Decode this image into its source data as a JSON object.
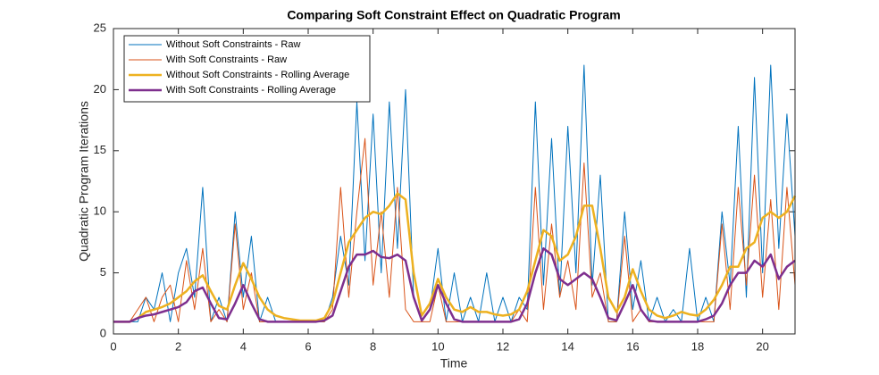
{
  "chart_data": {
    "type": "line",
    "title": "Comparing Soft Constraint Effect on Quadratic Program",
    "x_label": "Time",
    "y_label": "Quadratic Program Iterations",
    "x": [
      0,
      0.25,
      0.5,
      0.75,
      1,
      1.25,
      1.5,
      1.75,
      2,
      2.25,
      2.5,
      2.75,
      3,
      3.25,
      3.5,
      3.75,
      4,
      4.25,
      4.5,
      4.75,
      5,
      5.25,
      5.5,
      5.75,
      6,
      6.25,
      6.5,
      6.75,
      7,
      7.25,
      7.5,
      7.75,
      8,
      8.25,
      8.5,
      8.75,
      9,
      9.25,
      9.5,
      9.75,
      10,
      10.25,
      10.5,
      10.75,
      11,
      11.25,
      11.5,
      11.75,
      12,
      12.25,
      12.5,
      12.75,
      13,
      13.25,
      13.5,
      13.75,
      14,
      14.25,
      14.5,
      14.75,
      15,
      15.25,
      15.5,
      15.75,
      16,
      16.25,
      16.5,
      16.75,
      17,
      17.25,
      17.5,
      17.75,
      18,
      18.25,
      18.5,
      18.75,
      19,
      19.25,
      19.5,
      19.75,
      20,
      20.25,
      20.5,
      20.75,
      21
    ],
    "series": [
      {
        "name": "Without Soft Constraints - Raw",
        "color": "#0072BD",
        "width": 1,
        "values": [
          1,
          1,
          1,
          1,
          3,
          2,
          5,
          1,
          5,
          7,
          3,
          12,
          1,
          3,
          1,
          10,
          3,
          8,
          1,
          3,
          1,
          1,
          1,
          1,
          1,
          1,
          1,
          3,
          8,
          4,
          19,
          6,
          18,
          5,
          19,
          7,
          20,
          3,
          1,
          2,
          7,
          1,
          5,
          1,
          3,
          1,
          5,
          1,
          3,
          1,
          3,
          2,
          19,
          4,
          16,
          3,
          17,
          5,
          22,
          4,
          13,
          1,
          1,
          10,
          2,
          6,
          1,
          3,
          1,
          2,
          1,
          7,
          1,
          3,
          1,
          10,
          4,
          17,
          3,
          21,
          5,
          22,
          7,
          18,
          8
        ]
      },
      {
        "name": "With Soft Constraints - Raw",
        "color": "#D95319",
        "width": 1,
        "values": [
          1,
          1,
          1,
          2,
          3,
          1,
          3,
          4,
          1,
          6,
          2,
          7,
          1,
          2,
          1,
          9,
          2,
          5,
          1,
          1,
          1,
          1,
          1,
          1,
          1,
          1,
          1,
          2,
          12,
          3,
          10,
          16,
          4,
          10,
          3,
          12,
          2,
          1,
          1,
          1,
          4,
          1,
          1,
          1,
          1,
          1,
          1,
          1,
          1,
          1,
          2,
          1,
          12,
          2,
          9,
          3,
          6,
          2,
          14,
          3,
          5,
          1,
          1,
          8,
          1,
          2,
          1,
          1,
          1,
          1,
          1,
          1,
          1,
          1,
          1,
          9,
          2,
          12,
          4,
          13,
          3,
          11,
          2,
          12,
          4
        ]
      },
      {
        "name": "Without Soft Constraints - Rolling Average",
        "color": "#EDB120",
        "width": 2.5,
        "values": [
          1,
          1,
          1,
          1.3,
          1.8,
          2,
          2.2,
          2.5,
          3,
          3.5,
          4.3,
          4.8,
          3.5,
          2.3,
          2,
          4,
          5.8,
          4.5,
          3,
          2,
          1.5,
          1.3,
          1.2,
          1.1,
          1.1,
          1.1,
          1.3,
          2.5,
          5,
          7.5,
          8.5,
          9.5,
          10,
          9.8,
          10.5,
          11.5,
          11,
          5,
          1.5,
          2.5,
          4.5,
          3,
          2,
          1.8,
          2.2,
          1.8,
          1.8,
          1.6,
          1.5,
          1.6,
          2,
          3.5,
          6,
          8.5,
          8,
          6,
          6.5,
          8,
          10.5,
          10.5,
          7,
          3,
          1.8,
          3,
          5.3,
          3.5,
          2,
          1.5,
          1.3,
          1.5,
          1.8,
          1.6,
          1.5,
          2,
          2.8,
          4,
          5.5,
          5.5,
          7,
          7.5,
          9.5,
          10,
          9.5,
          10,
          11.3
        ]
      },
      {
        "name": "With Soft Constraints - Rolling Average",
        "color": "#7E2F8E",
        "width": 2.5,
        "values": [
          1,
          1,
          1,
          1.3,
          1.5,
          1.6,
          1.8,
          2,
          2.2,
          2.6,
          3.5,
          3.8,
          2.5,
          1.3,
          1.2,
          2.5,
          4,
          2.5,
          1.2,
          1,
          1,
          1,
          1,
          1,
          1,
          1,
          1.1,
          1.5,
          3.5,
          5.5,
          6.5,
          6.5,
          6.8,
          6.3,
          6.2,
          6.5,
          6,
          3,
          1.1,
          2,
          4,
          2.5,
          1.2,
          1,
          1,
          1,
          1,
          1,
          1,
          1,
          1.2,
          2.5,
          5,
          7,
          6.5,
          4.5,
          4,
          4.5,
          5,
          4.5,
          3,
          1.3,
          1.1,
          2.5,
          4,
          2,
          1.1,
          1,
          1,
          1,
          1,
          1,
          1,
          1.2,
          1.5,
          2.5,
          4,
          5,
          5,
          6,
          5.5,
          6.5,
          4.5,
          5.5,
          6
        ]
      }
    ],
    "xlim": [
      0,
      21
    ],
    "xticks": [
      0,
      2,
      4,
      6,
      8,
      10,
      12,
      14,
      16,
      18,
      20
    ],
    "ylim": [
      0,
      25
    ],
    "yticks": [
      0,
      5,
      10,
      15,
      20,
      25
    ],
    "grid": false,
    "legend": "northwest"
  }
}
